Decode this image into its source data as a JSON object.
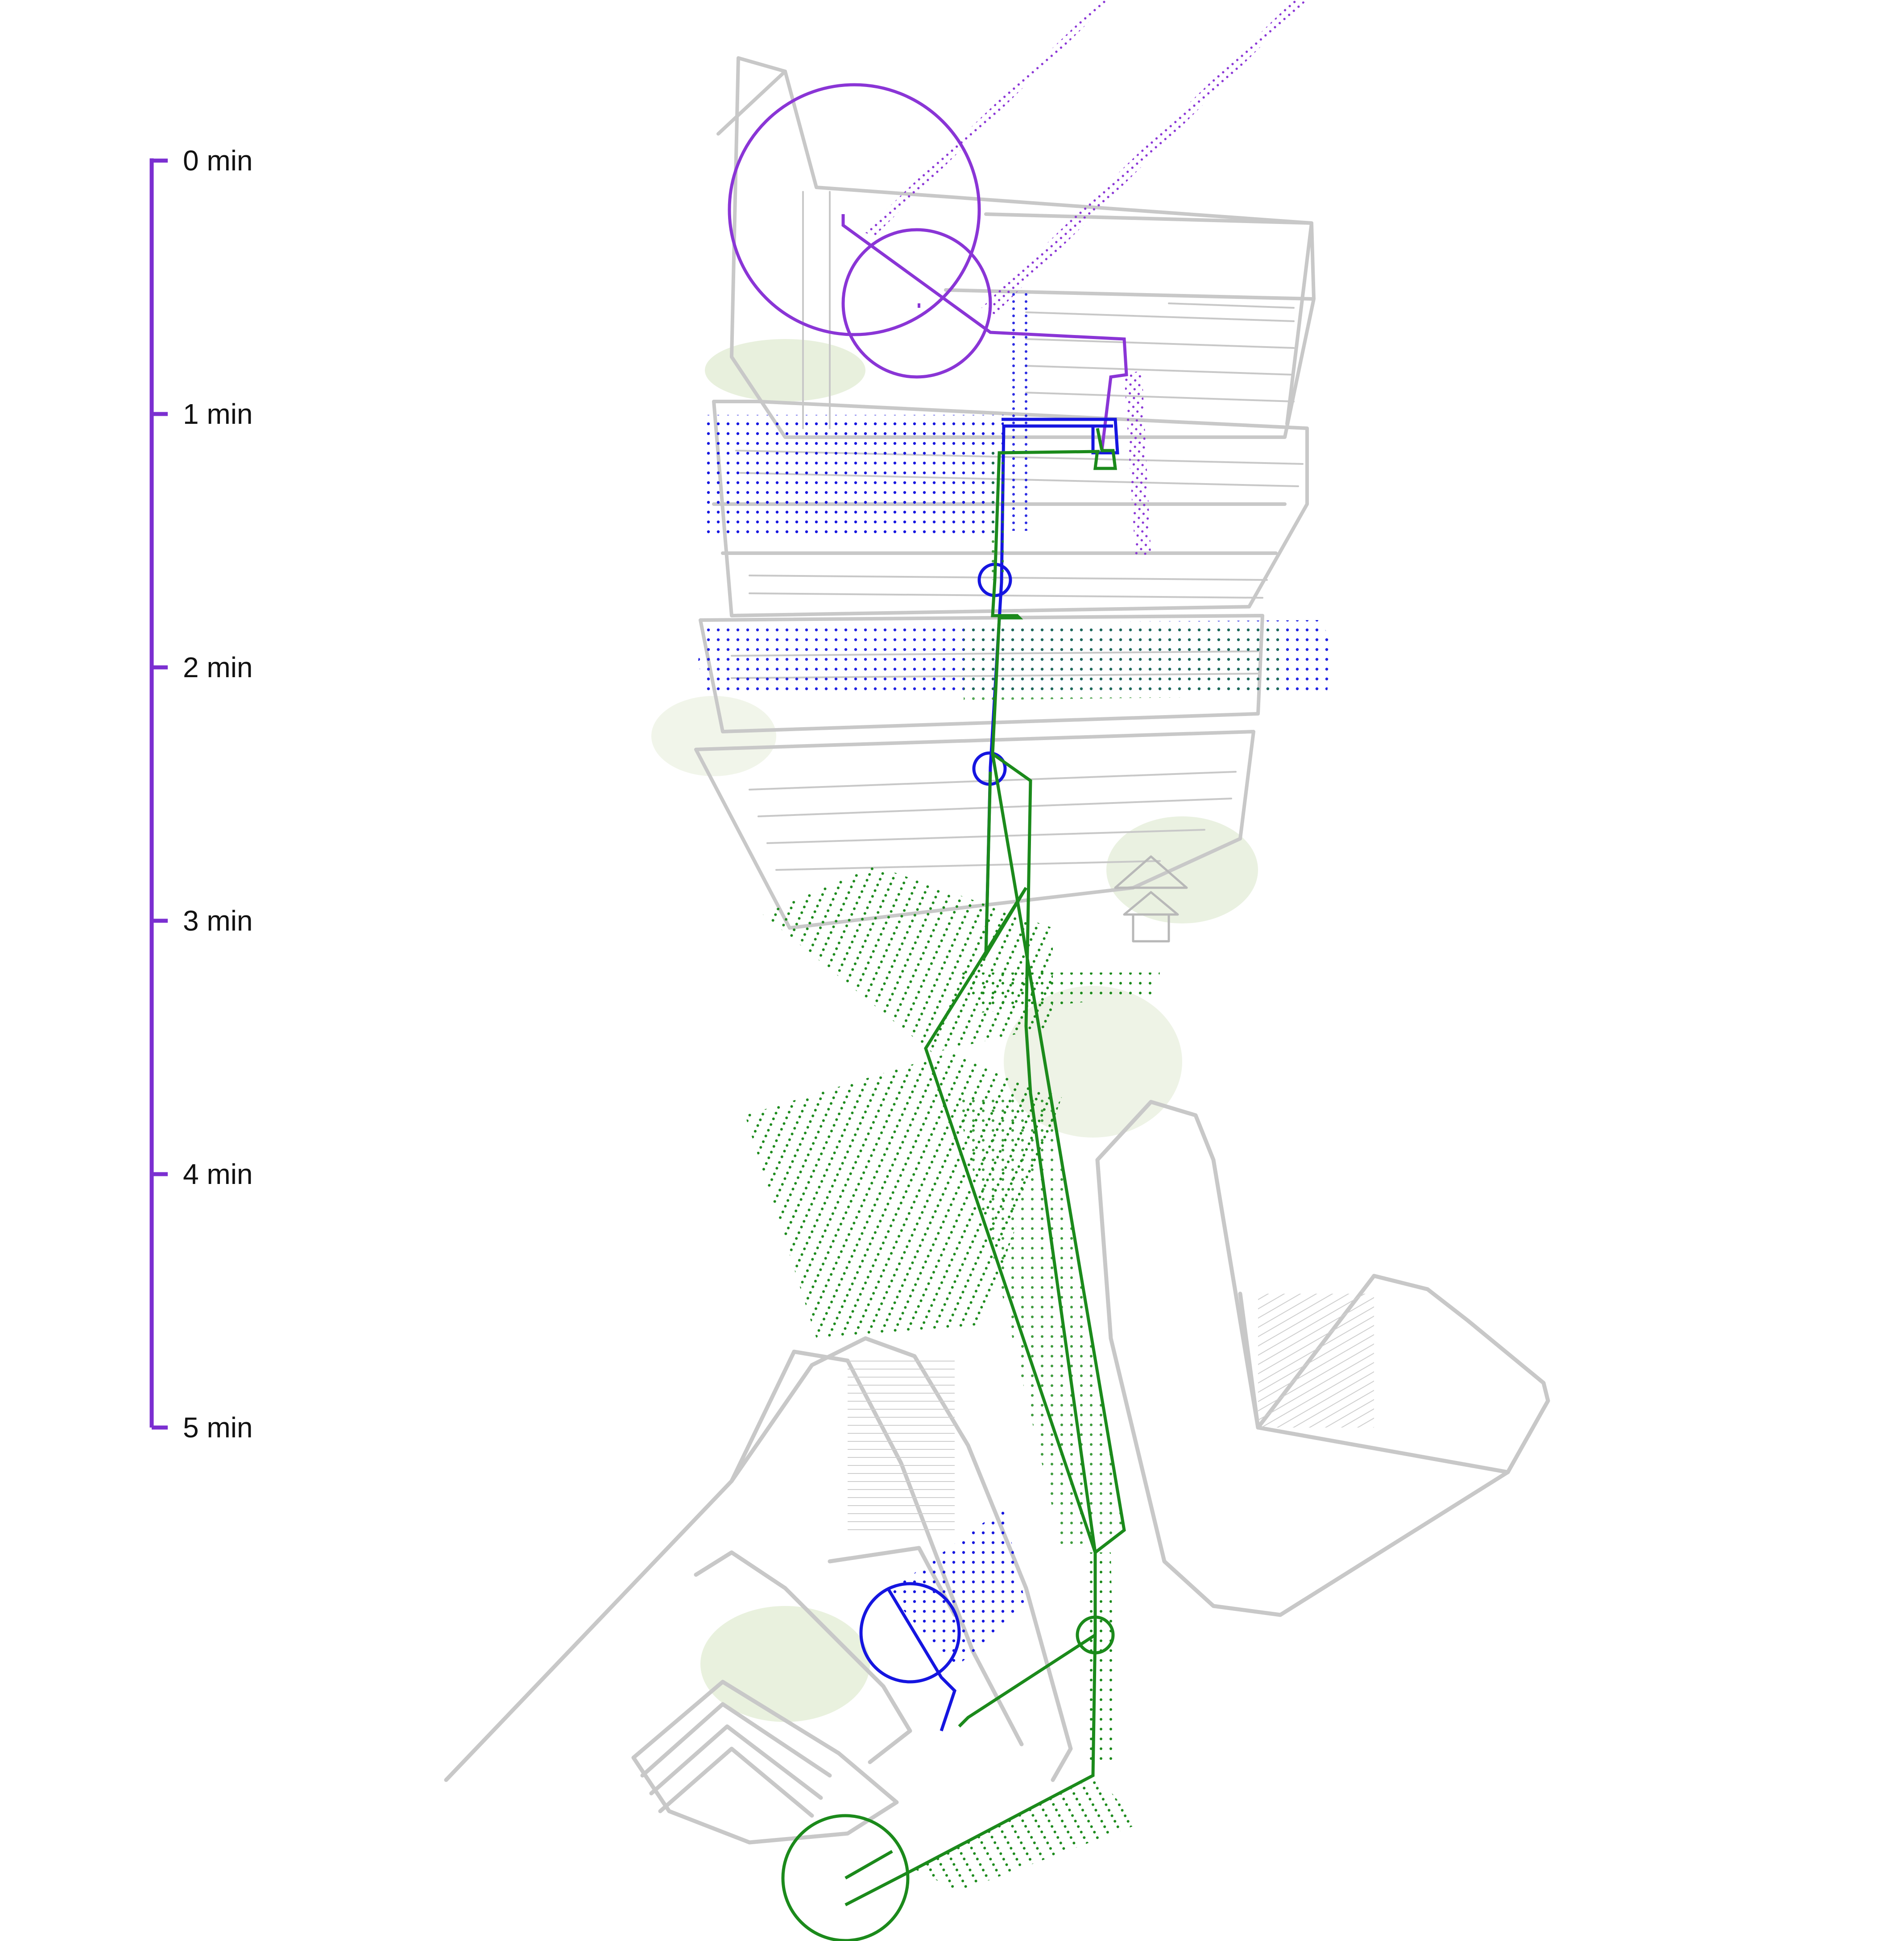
{
  "timeline": {
    "ticks": [
      {
        "label": "0 min",
        "minutes": 0
      },
      {
        "label": "1 min",
        "minutes": 1
      },
      {
        "label": "2 min",
        "minutes": 2
      },
      {
        "label": "3 min",
        "minutes": 3
      },
      {
        "label": "4 min",
        "minutes": 4
      },
      {
        "label": "5 min",
        "minutes": 5
      }
    ]
  },
  "colors": {
    "timeline": "#7b2fd1",
    "route_purple": "#8a35d6",
    "route_blue": "#1515e0",
    "route_green": "#1b8a1b",
    "sketch": "#c8c8c8",
    "sketch_fill": "#eef3e6"
  },
  "routes": [
    {
      "id": "purple",
      "color_key": "route_purple"
    },
    {
      "id": "blue",
      "color_key": "route_blue"
    },
    {
      "id": "green",
      "color_key": "route_green"
    }
  ],
  "icons": {
    "view_cone": "view-cone-icon",
    "stop_circle": "stop-circle-icon"
  }
}
